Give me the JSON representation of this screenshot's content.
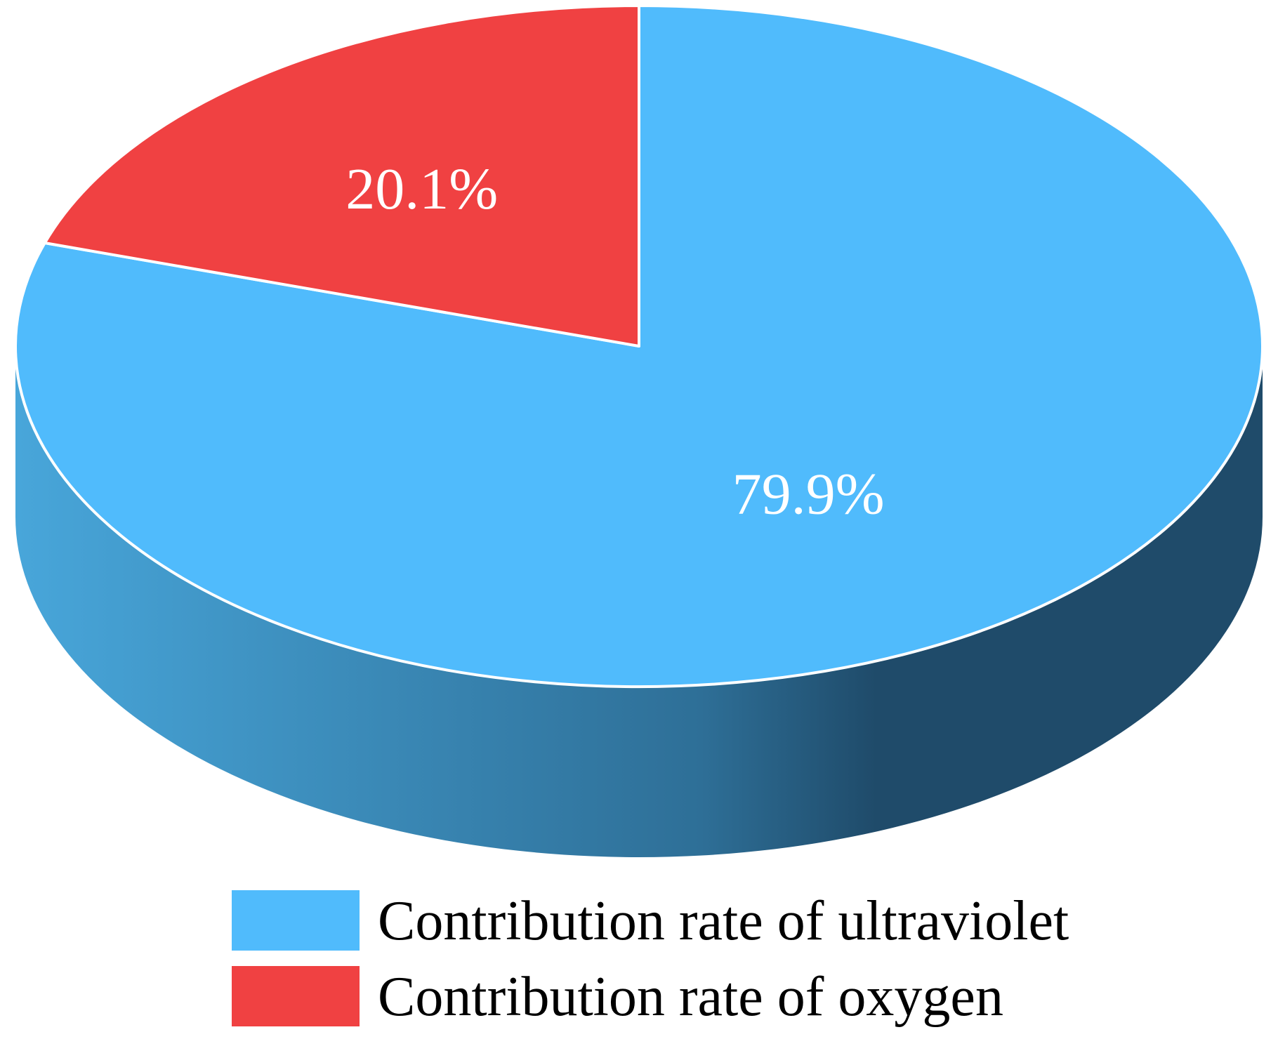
{
  "chart_data": {
    "type": "pie",
    "style": "3d",
    "start_angle_deg": 90,
    "direction": "clockwise",
    "slices": [
      {
        "name": "Contribution rate of ultraviolet",
        "value": 79.9,
        "label": "79.9%",
        "color": "#50bbfc"
      },
      {
        "name": "Contribution rate of oxygen",
        "value": 20.1,
        "label": "20.1%",
        "color": "#f04142"
      }
    ],
    "legend": {
      "position": "bottom",
      "entries": [
        {
          "label": "Contribution rate of ultraviolet",
          "color": "#50bbfc"
        },
        {
          "label": "Contribution rate of oxygen",
          "color": "#f04142"
        }
      ]
    }
  }
}
